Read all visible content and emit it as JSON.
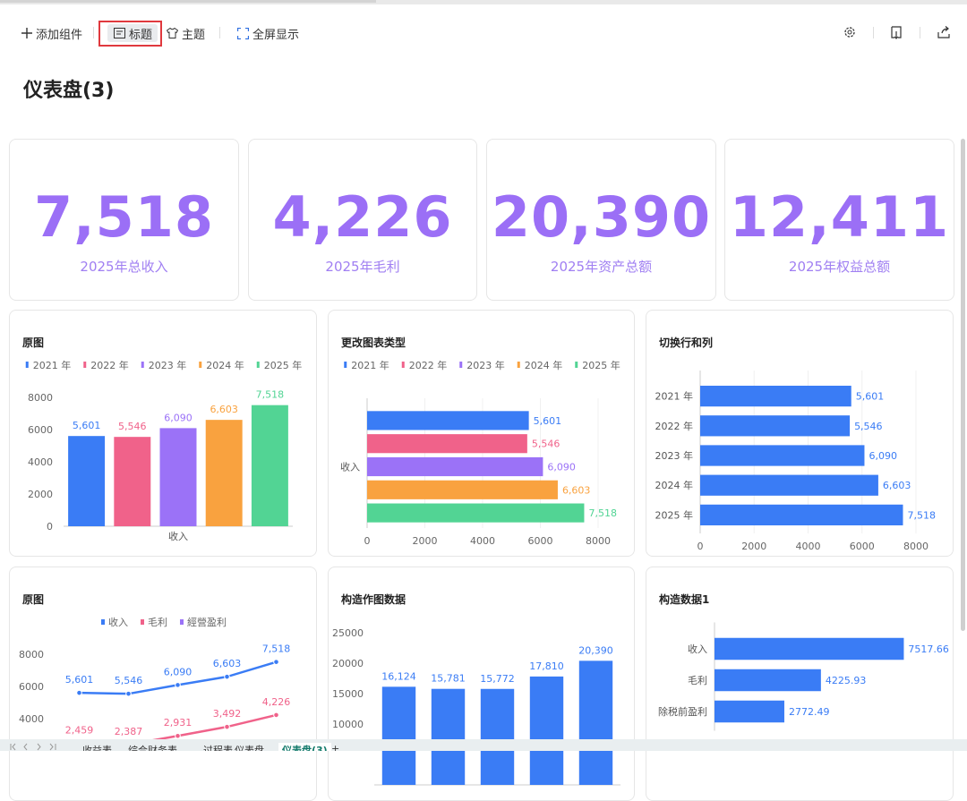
{
  "toolbar": {
    "add": "添加组件",
    "title_button": "标题",
    "theme": "主题",
    "fullscreen": "全屏显示"
  },
  "page_title": "仪表盘(3)",
  "kpis": [
    {
      "value": "7,518",
      "label": "2025年总收入"
    },
    {
      "value": "4,226",
      "label": "2025年毛利"
    },
    {
      "value": "20,390",
      "label": "2025年资产总额"
    },
    {
      "value": "12,411",
      "label": "2025年权益总额"
    }
  ],
  "chart_data": [
    {
      "type": "bar",
      "title": "原图",
      "categories": [
        "收入"
      ],
      "series": [
        {
          "name": "2021 年",
          "color": "#3a7cf5",
          "values": [
            5601
          ],
          "value_labels": [
            "5,601"
          ]
        },
        {
          "name": "2022 年",
          "color": "#f0628a",
          "values": [
            5546
          ],
          "value_labels": [
            "5,546"
          ]
        },
        {
          "name": "2023 年",
          "color": "#9b72f7",
          "values": [
            6090
          ],
          "value_labels": [
            "6,090"
          ]
        },
        {
          "name": "2024 年",
          "color": "#f9a23f",
          "values": [
            6603
          ],
          "value_labels": [
            "6,603"
          ]
        },
        {
          "name": "2025 年",
          "color": "#52d494",
          "values": [
            7518
          ],
          "value_labels": [
            "7,518"
          ]
        }
      ],
      "ylim": [
        0,
        8000
      ],
      "yticks": [
        0,
        2000,
        4000,
        6000,
        8000
      ]
    },
    {
      "type": "bar",
      "orientation": "horizontal",
      "title": "更改图表类型",
      "categories": [
        "收入"
      ],
      "series": [
        {
          "name": "2021 年",
          "color": "#3a7cf5",
          "values": [
            5601
          ],
          "value_labels": [
            "5,601"
          ]
        },
        {
          "name": "2022 年",
          "color": "#f0628a",
          "values": [
            5546
          ],
          "value_labels": [
            "5,546"
          ]
        },
        {
          "name": "2023 年",
          "color": "#9b72f7",
          "values": [
            6090
          ],
          "value_labels": [
            "6,090"
          ]
        },
        {
          "name": "2024 年",
          "color": "#f9a23f",
          "values": [
            6603
          ],
          "value_labels": [
            "6,603"
          ]
        },
        {
          "name": "2025 年",
          "color": "#52d494",
          "values": [
            7518
          ],
          "value_labels": [
            "7,518"
          ]
        }
      ],
      "xlim": [
        0,
        8000
      ],
      "xticks": [
        0,
        2000,
        4000,
        6000,
        8000
      ]
    },
    {
      "type": "bar",
      "orientation": "horizontal",
      "title": "切换行和列",
      "categories": [
        "2021 年",
        "2022 年",
        "2023 年",
        "2024 年",
        "2025 年"
      ],
      "values": [
        5601,
        5546,
        6090,
        6603,
        7518
      ],
      "value_labels": [
        "5,601",
        "5,546",
        "6,090",
        "6,603",
        "7,518"
      ],
      "color": "#3a7cf5",
      "xlim": [
        0,
        8000
      ],
      "xticks": [
        0,
        2000,
        4000,
        6000,
        8000
      ]
    },
    {
      "type": "line",
      "title": "原图",
      "categories": [
        null,
        null,
        null,
        null,
        null
      ],
      "series": [
        {
          "name": "收入",
          "color": "#3a7cf5",
          "values": [
            5601,
            5546,
            6090,
            6603,
            7518
          ],
          "value_labels": [
            "5,601",
            "5,546",
            "6,090",
            "6,603",
            "7,518"
          ]
        },
        {
          "name": "毛利",
          "color": "#f0628a",
          "values": [
            2459,
            2387,
            2931,
            3492,
            4226
          ],
          "value_labels": [
            "2,459",
            "2,387",
            "2,931",
            "3,492",
            "4,226"
          ]
        },
        {
          "name": "經營盈利",
          "color": "#9b72f7",
          "values": [
            null,
            null,
            null,
            null,
            null
          ]
        }
      ],
      "ylim": [
        0,
        8000
      ],
      "yticks": [
        4000,
        6000,
        8000
      ]
    },
    {
      "type": "bar",
      "title": "构造作图数据",
      "categories": [
        null,
        null,
        null,
        null,
        null
      ],
      "values": [
        16124,
        15781,
        15772,
        17810,
        20390
      ],
      "value_labels": [
        "16,124",
        "15,781",
        "15,772",
        "17,810",
        "20,390"
      ],
      "color": "#3a7cf5",
      "ylim": [
        0,
        25000
      ],
      "yticks": [
        10000,
        15000,
        20000,
        25000
      ]
    },
    {
      "type": "bar",
      "orientation": "horizontal",
      "title": "构造数据1",
      "categories": [
        "收入",
        "毛利",
        "除税前盈利"
      ],
      "values": [
        7517.66,
        4225.93,
        2772.49
      ],
      "color": "#3a7cf5",
      "xlim": [
        0,
        8000
      ]
    }
  ],
  "sheet_tabs": [
    "收益表",
    "综合财务表",
    "过程表",
    "仪表盘",
    "仪表盘(3)",
    "+"
  ]
}
